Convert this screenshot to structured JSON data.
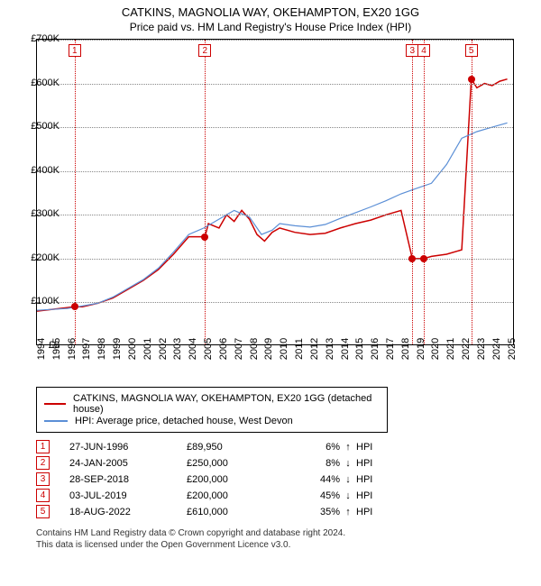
{
  "title1": "CATKINS, MAGNOLIA WAY, OKEHAMPTON, EX20 1GG",
  "title2": "Price paid vs. HM Land Registry's House Price Index (HPI)",
  "chart": {
    "type": "line",
    "xlim": [
      1994,
      2025.5
    ],
    "ylim": [
      0,
      700000
    ],
    "ytick_step": 100000,
    "ylabels": [
      "£0",
      "£100K",
      "£200K",
      "£300K",
      "£400K",
      "£500K",
      "£600K",
      "£700K"
    ],
    "xticks": [
      1994,
      1995,
      1996,
      1997,
      1998,
      1999,
      2000,
      2001,
      2002,
      2003,
      2004,
      2005,
      2006,
      2007,
      2008,
      2009,
      2010,
      2011,
      2012,
      2013,
      2014,
      2015,
      2016,
      2017,
      2018,
      2019,
      2020,
      2021,
      2022,
      2023,
      2024,
      2025
    ],
    "grid_color": "#888888",
    "border_color": "#000000",
    "background_color": "#ffffff",
    "series": [
      {
        "name": "CATKINS, MAGNOLIA WAY, OKEHAMPTON, EX20 1GG (detached house)",
        "color": "#cc0000",
        "line_width": 1.5,
        "data": [
          [
            1994,
            80000
          ],
          [
            1996.48,
            89950
          ],
          [
            1997,
            90000
          ],
          [
            1998,
            98000
          ],
          [
            1999,
            110000
          ],
          [
            2000,
            130000
          ],
          [
            2001,
            150000
          ],
          [
            2002,
            175000
          ],
          [
            2003,
            210000
          ],
          [
            2004,
            250000
          ],
          [
            2005.07,
            250000
          ],
          [
            2005.3,
            280000
          ],
          [
            2006,
            270000
          ],
          [
            2006.5,
            300000
          ],
          [
            2007,
            285000
          ],
          [
            2007.5,
            310000
          ],
          [
            2008,
            290000
          ],
          [
            2008.5,
            255000
          ],
          [
            2009,
            240000
          ],
          [
            2009.5,
            260000
          ],
          [
            2010,
            270000
          ],
          [
            2011,
            260000
          ],
          [
            2012,
            255000
          ],
          [
            2013,
            258000
          ],
          [
            2014,
            270000
          ],
          [
            2015,
            280000
          ],
          [
            2016,
            288000
          ],
          [
            2017,
            300000
          ],
          [
            2018,
            310000
          ],
          [
            2018.74,
            200000
          ],
          [
            2019.5,
            200000
          ],
          [
            2020,
            205000
          ],
          [
            2021,
            210000
          ],
          [
            2022,
            220000
          ],
          [
            2022.63,
            610000
          ],
          [
            2023,
            590000
          ],
          [
            2023.5,
            600000
          ],
          [
            2024,
            595000
          ],
          [
            2024.5,
            605000
          ],
          [
            2025,
            610000
          ]
        ]
      },
      {
        "name": "HPI: Average price, detached house, West Devon",
        "color": "#5b8fd6",
        "line_width": 1.2,
        "data": [
          [
            1994,
            82000
          ],
          [
            1995,
            84000
          ],
          [
            1996,
            86000
          ],
          [
            1997,
            92000
          ],
          [
            1998,
            98000
          ],
          [
            1999,
            112000
          ],
          [
            2000,
            132000
          ],
          [
            2001,
            152000
          ],
          [
            2002,
            178000
          ],
          [
            2003,
            215000
          ],
          [
            2004,
            255000
          ],
          [
            2005,
            270000
          ],
          [
            2006,
            290000
          ],
          [
            2007,
            310000
          ],
          [
            2008,
            295000
          ],
          [
            2008.8,
            255000
          ],
          [
            2009.5,
            265000
          ],
          [
            2010,
            280000
          ],
          [
            2011,
            275000
          ],
          [
            2012,
            272000
          ],
          [
            2013,
            278000
          ],
          [
            2014,
            292000
          ],
          [
            2015,
            305000
          ],
          [
            2016,
            318000
          ],
          [
            2017,
            332000
          ],
          [
            2018,
            348000
          ],
          [
            2019,
            360000
          ],
          [
            2020,
            372000
          ],
          [
            2021,
            415000
          ],
          [
            2022,
            475000
          ],
          [
            2023,
            490000
          ],
          [
            2024,
            500000
          ],
          [
            2025,
            510000
          ]
        ]
      }
    ],
    "markers": [
      {
        "n": "1",
        "x": 1996.48,
        "y": 89950,
        "color": "#cc0000"
      },
      {
        "n": "2",
        "x": 2005.07,
        "y": 250000,
        "color": "#cc0000"
      },
      {
        "n": "3",
        "x": 2018.74,
        "y": 200000,
        "color": "#cc0000"
      },
      {
        "n": "4",
        "x": 2019.5,
        "y": 200000,
        "color": "#cc0000"
      },
      {
        "n": "5",
        "x": 2022.63,
        "y": 610000,
        "color": "#cc0000"
      }
    ],
    "marker_vline_color": "#cc0000"
  },
  "legend": {
    "items": [
      {
        "label": "CATKINS, MAGNOLIA WAY, OKEHAMPTON, EX20 1GG (detached house)",
        "color": "#cc0000"
      },
      {
        "label": "HPI: Average price, detached house, West Devon",
        "color": "#5b8fd6"
      }
    ]
  },
  "transactions": [
    {
      "n": "1",
      "date": "27-JUN-1996",
      "price": "£89,950",
      "pct": "6%",
      "arrow": "↑",
      "label": "HPI"
    },
    {
      "n": "2",
      "date": "24-JAN-2005",
      "price": "£250,000",
      "pct": "8%",
      "arrow": "↓",
      "label": "HPI"
    },
    {
      "n": "3",
      "date": "28-SEP-2018",
      "price": "£200,000",
      "pct": "44%",
      "arrow": "↓",
      "label": "HPI"
    },
    {
      "n": "4",
      "date": "03-JUL-2019",
      "price": "£200,000",
      "pct": "45%",
      "arrow": "↓",
      "label": "HPI"
    },
    {
      "n": "5",
      "date": "18-AUG-2022",
      "price": "£610,000",
      "pct": "35%",
      "arrow": "↑",
      "label": "HPI"
    }
  ],
  "footer_line1": "Contains HM Land Registry data © Crown copyright and database right 2024.",
  "footer_line2": "This data is licensed under the Open Government Licence v3.0."
}
